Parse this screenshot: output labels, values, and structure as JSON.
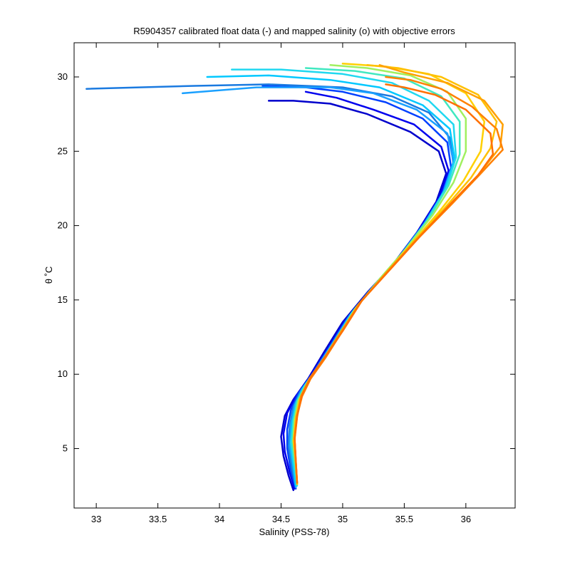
{
  "chart_data": {
    "type": "line",
    "title": "R5904357 calibrated float data (-) and mapped salinity (o) with objective errors",
    "xlabel": "Salinity (PSS-78)",
    "ylabel": "θ ˚C",
    "xlim": [
      32.82,
      36.4
    ],
    "ylim": [
      1.0,
      32.3
    ],
    "x_ticks": [
      33,
      33.5,
      34,
      34.5,
      35,
      35.5,
      36
    ],
    "x_tick_labels": [
      "33",
      "33.5",
      "34",
      "34.5",
      "35",
      "35.5",
      "36"
    ],
    "y_ticks": [
      5,
      10,
      15,
      20,
      25,
      30
    ],
    "y_tick_labels": [
      "5",
      "10",
      "15",
      "20",
      "25",
      "30"
    ],
    "grid": false,
    "colormap": "jet",
    "series": [
      {
        "color": "#0000cc",
        "points": [
          [
            34.6,
            2.2
          ],
          [
            34.56,
            3.2
          ],
          [
            34.52,
            4.5
          ],
          [
            34.5,
            5.8
          ],
          [
            34.53,
            7.2
          ],
          [
            34.6,
            8.3
          ],
          [
            34.72,
            9.7
          ],
          [
            34.85,
            11.5
          ],
          [
            35.0,
            13.5
          ],
          [
            35.2,
            15.5
          ],
          [
            35.4,
            17.3
          ],
          [
            35.6,
            19.5
          ],
          [
            35.76,
            21.6
          ],
          [
            35.84,
            23.5
          ],
          [
            35.78,
            25.0
          ],
          [
            35.55,
            26.3
          ],
          [
            35.2,
            27.5
          ],
          [
            34.9,
            28.2
          ],
          [
            34.6,
            28.4
          ],
          [
            34.4,
            28.4
          ]
        ]
      },
      {
        "color": "#0000ee",
        "points": [
          [
            34.61,
            2.3
          ],
          [
            34.57,
            3.4
          ],
          [
            34.53,
            4.8
          ],
          [
            34.52,
            6.0
          ],
          [
            34.55,
            7.4
          ],
          [
            34.62,
            8.5
          ],
          [
            34.74,
            9.9
          ],
          [
            34.87,
            11.6
          ],
          [
            35.02,
            13.6
          ],
          [
            35.22,
            15.6
          ],
          [
            35.42,
            17.5
          ],
          [
            35.62,
            19.7
          ],
          [
            35.78,
            21.8
          ],
          [
            35.86,
            23.7
          ],
          [
            35.8,
            25.3
          ],
          [
            35.58,
            26.8
          ],
          [
            35.25,
            27.8
          ],
          [
            34.95,
            28.6
          ],
          [
            34.7,
            29.0
          ]
        ]
      },
      {
        "color": "#0040ff",
        "points": [
          [
            34.62,
            2.3
          ],
          [
            34.58,
            3.5
          ],
          [
            34.55,
            5.0
          ],
          [
            34.55,
            6.3
          ],
          [
            34.58,
            7.6
          ],
          [
            34.64,
            8.7
          ],
          [
            34.76,
            10.1
          ],
          [
            34.89,
            11.8
          ],
          [
            35.04,
            13.8
          ],
          [
            35.24,
            15.8
          ],
          [
            35.44,
            17.7
          ],
          [
            35.64,
            19.9
          ],
          [
            35.8,
            22.0
          ],
          [
            35.88,
            23.9
          ],
          [
            35.85,
            25.6
          ],
          [
            35.65,
            27.2
          ],
          [
            35.35,
            28.3
          ],
          [
            35.0,
            29.0
          ],
          [
            34.7,
            29.3
          ],
          [
            34.35,
            29.4
          ]
        ]
      },
      {
        "color": "#1a7ae0",
        "points": [
          [
            34.62,
            2.4
          ],
          [
            34.59,
            3.6
          ],
          [
            34.56,
            5.1
          ],
          [
            34.57,
            6.5
          ],
          [
            34.6,
            7.8
          ],
          [
            34.66,
            8.9
          ],
          [
            34.78,
            10.3
          ],
          [
            34.91,
            12.0
          ],
          [
            35.06,
            14.0
          ],
          [
            35.26,
            16.0
          ],
          [
            35.46,
            17.9
          ],
          [
            35.66,
            20.1
          ],
          [
            35.82,
            22.2
          ],
          [
            35.9,
            24.1
          ],
          [
            35.87,
            25.9
          ],
          [
            35.7,
            27.6
          ],
          [
            35.4,
            28.7
          ],
          [
            35.0,
            29.3
          ],
          [
            34.4,
            29.5
          ],
          [
            33.8,
            29.4
          ],
          [
            32.92,
            29.2
          ]
        ]
      },
      {
        "color": "#1aa0ff",
        "points": [
          [
            34.62,
            2.4
          ],
          [
            34.6,
            3.7
          ],
          [
            34.57,
            5.2
          ],
          [
            34.58,
            6.6
          ],
          [
            34.61,
            7.9
          ],
          [
            34.67,
            9.0
          ],
          [
            34.79,
            10.4
          ],
          [
            34.92,
            12.1
          ],
          [
            35.07,
            14.1
          ],
          [
            35.27,
            16.1
          ],
          [
            35.47,
            18.0
          ],
          [
            35.67,
            20.2
          ],
          [
            35.82,
            22.3
          ],
          [
            35.9,
            24.3
          ],
          [
            35.85,
            26.2
          ],
          [
            35.6,
            27.8
          ],
          [
            35.25,
            28.9
          ],
          [
            34.9,
            29.3
          ],
          [
            34.3,
            29.3
          ],
          [
            33.7,
            28.9
          ]
        ]
      },
      {
        "color": "#00c8ff",
        "points": [
          [
            34.62,
            2.5
          ],
          [
            34.6,
            3.8
          ],
          [
            34.58,
            5.3
          ],
          [
            34.59,
            6.7
          ],
          [
            34.62,
            8.0
          ],
          [
            34.68,
            9.1
          ],
          [
            34.8,
            10.5
          ],
          [
            34.93,
            12.2
          ],
          [
            35.08,
            14.2
          ],
          [
            35.28,
            16.2
          ],
          [
            35.48,
            18.1
          ],
          [
            35.68,
            20.3
          ],
          [
            35.83,
            22.4
          ],
          [
            35.91,
            24.4
          ],
          [
            35.87,
            26.5
          ],
          [
            35.65,
            28.1
          ],
          [
            35.3,
            29.3
          ],
          [
            34.9,
            29.8
          ],
          [
            34.4,
            30.1
          ],
          [
            33.9,
            30.0
          ]
        ]
      },
      {
        "color": "#20d8f0",
        "points": [
          [
            34.63,
            2.5
          ],
          [
            34.61,
            3.8
          ],
          [
            34.58,
            5.4
          ],
          [
            34.6,
            6.8
          ],
          [
            34.63,
            8.1
          ],
          [
            34.69,
            9.2
          ],
          [
            34.81,
            10.6
          ],
          [
            34.94,
            12.3
          ],
          [
            35.09,
            14.3
          ],
          [
            35.29,
            16.3
          ],
          [
            35.49,
            18.2
          ],
          [
            35.69,
            20.4
          ],
          [
            35.84,
            22.5
          ],
          [
            35.92,
            24.6
          ],
          [
            35.9,
            26.8
          ],
          [
            35.7,
            28.4
          ],
          [
            35.4,
            29.6
          ],
          [
            35.0,
            30.2
          ],
          [
            34.5,
            30.5
          ],
          [
            34.1,
            30.5
          ]
        ]
      },
      {
        "color": "#40e8c0",
        "points": [
          [
            34.63,
            2.6
          ],
          [
            34.61,
            3.9
          ],
          [
            34.59,
            5.4
          ],
          [
            34.6,
            6.9
          ],
          [
            34.63,
            8.2
          ],
          [
            34.7,
            9.3
          ],
          [
            34.82,
            10.7
          ],
          [
            34.95,
            12.4
          ],
          [
            35.1,
            14.4
          ],
          [
            35.3,
            16.4
          ],
          [
            35.5,
            18.3
          ],
          [
            35.7,
            20.5
          ],
          [
            35.86,
            22.7
          ],
          [
            35.95,
            24.8
          ],
          [
            35.95,
            27.0
          ],
          [
            35.8,
            28.7
          ],
          [
            35.5,
            29.9
          ],
          [
            35.1,
            30.4
          ],
          [
            34.7,
            30.6
          ]
        ]
      },
      {
        "color": "#a0f060",
        "points": [
          [
            34.63,
            2.6
          ],
          [
            34.62,
            3.9
          ],
          [
            34.6,
            5.5
          ],
          [
            34.61,
            6.9
          ],
          [
            34.64,
            8.2
          ],
          [
            34.71,
            9.4
          ],
          [
            34.83,
            10.8
          ],
          [
            34.96,
            12.5
          ],
          [
            35.11,
            14.5
          ],
          [
            35.31,
            16.5
          ],
          [
            35.52,
            18.5
          ],
          [
            35.73,
            20.7
          ],
          [
            35.9,
            22.9
          ],
          [
            36.0,
            25.0
          ],
          [
            36.0,
            27.2
          ],
          [
            35.85,
            29.0
          ],
          [
            35.55,
            30.1
          ],
          [
            35.2,
            30.6
          ],
          [
            34.9,
            30.8
          ]
        ]
      },
      {
        "color": "#ffd000",
        "points": [
          [
            34.63,
            2.6
          ],
          [
            34.62,
            4.0
          ],
          [
            34.6,
            5.5
          ],
          [
            34.62,
            7.0
          ],
          [
            34.65,
            8.3
          ],
          [
            34.72,
            9.5
          ],
          [
            34.84,
            10.9
          ],
          [
            34.97,
            12.6
          ],
          [
            35.12,
            14.6
          ],
          [
            35.33,
            16.6
          ],
          [
            35.55,
            18.7
          ],
          [
            35.78,
            20.9
          ],
          [
            35.98,
            23.0
          ],
          [
            36.12,
            25.0
          ],
          [
            36.15,
            27.0
          ],
          [
            36.0,
            28.9
          ],
          [
            35.7,
            30.2
          ],
          [
            35.35,
            30.7
          ],
          [
            35.0,
            30.9
          ]
        ]
      },
      {
        "color": "#ffc000",
        "points": [
          [
            34.63,
            2.6
          ],
          [
            34.62,
            4.0
          ],
          [
            34.61,
            5.6
          ],
          [
            34.62,
            7.1
          ],
          [
            34.66,
            8.4
          ],
          [
            34.73,
            9.6
          ],
          [
            34.85,
            11.0
          ],
          [
            34.98,
            12.7
          ],
          [
            35.13,
            14.7
          ],
          [
            35.35,
            16.8
          ],
          [
            35.58,
            18.9
          ],
          [
            35.82,
            21.1
          ],
          [
            36.04,
            23.2
          ],
          [
            36.2,
            25.2
          ],
          [
            36.25,
            27.0
          ],
          [
            36.1,
            28.8
          ],
          [
            35.8,
            30.0
          ],
          [
            35.45,
            30.6
          ],
          [
            35.2,
            30.8
          ]
        ]
      },
      {
        "color": "#ffa000",
        "points": [
          [
            34.63,
            2.7
          ],
          [
            34.62,
            4.1
          ],
          [
            34.61,
            5.6
          ],
          [
            34.63,
            7.1
          ],
          [
            34.66,
            8.5
          ],
          [
            34.73,
            9.7
          ],
          [
            34.85,
            11.1
          ],
          [
            34.98,
            12.8
          ],
          [
            35.14,
            14.8
          ],
          [
            35.36,
            16.9
          ],
          [
            35.6,
            19.1
          ],
          [
            35.86,
            21.3
          ],
          [
            36.1,
            23.4
          ],
          [
            36.28,
            25.3
          ],
          [
            36.3,
            26.8
          ],
          [
            36.15,
            28.4
          ],
          [
            35.85,
            29.6
          ],
          [
            35.5,
            30.3
          ],
          [
            35.3,
            30.8
          ]
        ]
      },
      {
        "color": "#ff8000",
        "points": [
          [
            34.63,
            2.7
          ],
          [
            34.62,
            4.1
          ],
          [
            34.61,
            5.7
          ],
          [
            34.63,
            7.2
          ],
          [
            34.67,
            8.5
          ],
          [
            34.74,
            9.7
          ],
          [
            34.86,
            11.1
          ],
          [
            34.99,
            12.8
          ],
          [
            35.15,
            14.9
          ],
          [
            35.38,
            17.0
          ],
          [
            35.62,
            19.2
          ],
          [
            35.88,
            21.4
          ],
          [
            36.12,
            23.5
          ],
          [
            36.3,
            25.1
          ],
          [
            36.25,
            26.5
          ],
          [
            36.05,
            28.0
          ],
          [
            35.8,
            29.2
          ],
          [
            35.55,
            29.8
          ],
          [
            35.35,
            30.0
          ]
        ]
      },
      {
        "color": "#ff7000",
        "points": [
          [
            34.63,
            2.7
          ],
          [
            34.62,
            4.2
          ],
          [
            34.61,
            5.7
          ],
          [
            34.63,
            7.2
          ],
          [
            34.67,
            8.6
          ],
          [
            34.74,
            9.8
          ],
          [
            34.86,
            11.2
          ],
          [
            35.0,
            12.9
          ],
          [
            35.16,
            15.0
          ],
          [
            35.39,
            17.1
          ],
          [
            35.63,
            19.3
          ],
          [
            35.88,
            21.5
          ],
          [
            36.1,
            23.4
          ],
          [
            36.22,
            24.8
          ],
          [
            36.2,
            26.2
          ],
          [
            36.0,
            27.8
          ],
          [
            35.75,
            28.8
          ],
          [
            35.5,
            29.3
          ],
          [
            35.35,
            29.5
          ]
        ]
      }
    ]
  }
}
